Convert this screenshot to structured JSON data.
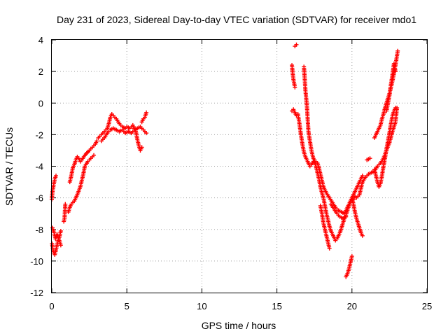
{
  "chart_data": {
    "type": "scatter",
    "title": "Day 231 of 2023, Sidereal Day-to-day VTEC variation (SDTVAR) for receiver mdo1",
    "xlabel": "GPS time / hours",
    "ylabel": "SDTVAR / TECUs",
    "xlim": [
      0,
      25
    ],
    "ylim": [
      -12,
      4
    ],
    "xticks": [
      0,
      5,
      10,
      15,
      20,
      25
    ],
    "yticks": [
      -12,
      -10,
      -8,
      -6,
      -4,
      -2,
      0,
      2,
      4
    ],
    "grid": true,
    "marker": "+",
    "color": "#ff0000",
    "series": [
      {
        "name": "SDTVAR",
        "tracks": [
          [
            [
              0.0,
              -6.1
            ],
            [
              0.05,
              -5.6
            ],
            [
              0.12,
              -5.2
            ],
            [
              0.2,
              -4.8
            ],
            [
              0.28,
              -4.6
            ]
          ],
          [
            [
              0.02,
              -8.9
            ],
            [
              0.1,
              -9.4
            ],
            [
              0.2,
              -9.6
            ],
            [
              0.3,
              -9.2
            ],
            [
              0.4,
              -8.8
            ],
            [
              0.5,
              -8.5
            ],
            [
              0.6,
              -8.1
            ]
          ],
          [
            [
              0.05,
              -7.9
            ],
            [
              0.15,
              -8.2
            ],
            [
              0.25,
              -8.6
            ],
            [
              0.35,
              -8.3
            ],
            [
              0.5,
              -8.7
            ],
            [
              0.6,
              -9.0
            ]
          ],
          [
            [
              0.8,
              -7.5
            ],
            [
              0.85,
              -7.3
            ],
            [
              0.9,
              -6.4
            ]
          ],
          [
            [
              1.1,
              -6.9
            ],
            [
              1.2,
              -6.6
            ],
            [
              1.3,
              -6.4
            ],
            [
              1.5,
              -6.2
            ],
            [
              1.7,
              -5.8
            ],
            [
              1.9,
              -5.3
            ],
            [
              2.0,
              -4.9
            ],
            [
              2.1,
              -4.5
            ],
            [
              2.2,
              -4.0
            ],
            [
              2.4,
              -3.7
            ],
            [
              2.6,
              -3.5
            ],
            [
              2.8,
              -3.3
            ]
          ],
          [
            [
              1.2,
              -5.0
            ],
            [
              1.3,
              -4.6
            ],
            [
              1.4,
              -4.1
            ],
            [
              1.5,
              -3.9
            ],
            [
              1.6,
              -3.6
            ],
            [
              1.7,
              -3.4
            ],
            [
              1.8,
              -3.5
            ],
            [
              1.9,
              -3.7
            ],
            [
              2.0,
              -3.6
            ],
            [
              2.2,
              -3.3
            ],
            [
              2.5,
              -3.0
            ],
            [
              2.7,
              -2.8
            ],
            [
              2.9,
              -2.6
            ],
            [
              3.0,
              -2.4
            ]
          ],
          [
            [
              3.1,
              -2.2
            ],
            [
              3.3,
              -2.0
            ],
            [
              3.5,
              -1.8
            ],
            [
              3.7,
              -1.6
            ],
            [
              3.8,
              -1.3
            ],
            [
              3.9,
              -0.9
            ],
            [
              4.0,
              -0.7
            ],
            [
              4.1,
              -0.8
            ],
            [
              4.3,
              -1.0
            ],
            [
              4.5,
              -1.3
            ],
            [
              4.7,
              -1.5
            ],
            [
              4.9,
              -1.6
            ]
          ],
          [
            [
              3.3,
              -2.4
            ],
            [
              3.5,
              -2.2
            ],
            [
              3.7,
              -1.9
            ],
            [
              3.9,
              -1.7
            ],
            [
              4.1,
              -1.6
            ],
            [
              4.3,
              -1.7
            ],
            [
              4.5,
              -1.8
            ],
            [
              4.7,
              -1.7
            ],
            [
              4.9,
              -1.9
            ],
            [
              5.1,
              -1.8
            ],
            [
              5.3,
              -1.9
            ],
            [
              5.5,
              -1.7
            ],
            [
              5.7,
              -1.6
            ],
            [
              5.9,
              -1.5
            ],
            [
              6.1,
              -1.7
            ],
            [
              6.3,
              -1.9
            ]
          ],
          [
            [
              5.0,
              -1.5
            ],
            [
              5.2,
              -1.6
            ],
            [
              5.4,
              -1.4
            ],
            [
              5.6,
              -1.8
            ],
            [
              5.7,
              -2.3
            ],
            [
              5.8,
              -2.7
            ],
            [
              5.9,
              -3.0
            ],
            [
              6.0,
              -2.8
            ]
          ],
          [
            [
              6.0,
              -1.2
            ],
            [
              6.1,
              -1.0
            ],
            [
              6.2,
              -0.9
            ],
            [
              6.3,
              -0.6
            ]
          ],
          [
            [
              16.0,
              2.4
            ],
            [
              16.05,
              1.9
            ],
            [
              16.1,
              1.5
            ],
            [
              16.2,
              1.0
            ]
          ],
          [
            [
              16.2,
              3.6
            ],
            [
              16.3,
              3.7
            ]
          ],
          [
            [
              16.0,
              -0.5
            ],
            [
              16.1,
              -0.4
            ],
            [
              16.2,
              -0.6
            ],
            [
              16.3,
              -0.8
            ]
          ],
          [
            [
              16.4,
              -0.7
            ],
            [
              16.5,
              -1.3
            ],
            [
              16.6,
              -2.0
            ],
            [
              16.7,
              -2.6
            ],
            [
              16.8,
              -3.1
            ],
            [
              16.9,
              -3.4
            ],
            [
              17.0,
              -3.6
            ],
            [
              17.1,
              -3.8
            ],
            [
              17.2,
              -4.0
            ],
            [
              17.3,
              -3.9
            ],
            [
              17.5,
              -3.6
            ],
            [
              17.7,
              -3.8
            ],
            [
              17.8,
              -4.1
            ],
            [
              17.9,
              -4.5
            ],
            [
              18.0,
              -4.9
            ],
            [
              18.1,
              -5.3
            ],
            [
              18.3,
              -5.7
            ],
            [
              18.5,
              -6.0
            ],
            [
              18.7,
              -6.3
            ],
            [
              18.9,
              -6.6
            ],
            [
              19.1,
              -6.8
            ],
            [
              19.3,
              -6.9
            ],
            [
              19.5,
              -7.0
            ],
            [
              19.7,
              -6.6
            ],
            [
              19.9,
              -6.2
            ],
            [
              20.1,
              -5.8
            ],
            [
              20.3,
              -5.4
            ],
            [
              20.5,
              -5.0
            ],
            [
              20.7,
              -4.6
            ]
          ],
          [
            [
              16.8,
              2.3
            ],
            [
              16.85,
              1.6
            ],
            [
              16.9,
              0.8
            ],
            [
              17.0,
              -0.2
            ],
            [
              17.05,
              -1.0
            ],
            [
              17.1,
              -1.8
            ],
            [
              17.2,
              -2.4
            ],
            [
              17.3,
              -3.0
            ],
            [
              17.4,
              -3.4
            ],
            [
              17.5,
              -3.7
            ],
            [
              17.6,
              -4.0
            ],
            [
              17.7,
              -4.4
            ],
            [
              17.8,
              -4.8
            ],
            [
              17.9,
              -5.3
            ],
            [
              18.0,
              -5.7
            ],
            [
              18.1,
              -6.0
            ],
            [
              18.2,
              -6.5
            ],
            [
              18.3,
              -7.0
            ],
            [
              18.4,
              -7.4
            ],
            [
              18.5,
              -7.8
            ],
            [
              18.6,
              -8.1
            ],
            [
              18.7,
              -8.3
            ],
            [
              18.8,
              -8.5
            ],
            [
              18.9,
              -8.7
            ],
            [
              19.0,
              -8.6
            ],
            [
              19.1,
              -8.4
            ],
            [
              19.2,
              -8.2
            ],
            [
              19.3,
              -7.9
            ],
            [
              19.4,
              -7.6
            ],
            [
              19.5,
              -7.3
            ],
            [
              19.6,
              -7.1
            ],
            [
              19.7,
              -6.8
            ],
            [
              19.8,
              -6.5
            ],
            [
              19.9,
              -6.3
            ],
            [
              20.0,
              -6.2
            ],
            [
              20.1,
              -6.1
            ],
            [
              20.2,
              -5.9
            ]
          ],
          [
            [
              17.9,
              -6.5
            ],
            [
              18.0,
              -7.0
            ],
            [
              18.1,
              -7.6
            ],
            [
              18.2,
              -8.0
            ],
            [
              18.3,
              -8.4
            ],
            [
              18.4,
              -8.8
            ],
            [
              18.5,
              -9.2
            ]
          ],
          [
            [
              18.6,
              -6.4
            ],
            [
              18.8,
              -6.7
            ],
            [
              19.0,
              -7.0
            ],
            [
              19.2,
              -7.2
            ],
            [
              19.4,
              -7.3
            ],
            [
              19.6,
              -7.2
            ]
          ],
          [
            [
              19.6,
              -11.0
            ],
            [
              19.7,
              -10.8
            ],
            [
              19.8,
              -10.5
            ],
            [
              19.9,
              -10.1
            ],
            [
              20.0,
              -9.7
            ]
          ],
          [
            [
              20.0,
              -6.0
            ],
            [
              20.1,
              -6.4
            ],
            [
              20.2,
              -6.9
            ],
            [
              20.3,
              -7.3
            ],
            [
              20.4,
              -7.6
            ],
            [
              20.5,
              -7.9
            ],
            [
              20.6,
              -8.2
            ],
            [
              20.7,
              -8.4
            ]
          ],
          [
            [
              20.3,
              -6.0
            ],
            [
              20.5,
              -5.8
            ],
            [
              20.7,
              -5.0
            ],
            [
              20.9,
              -4.7
            ],
            [
              21.1,
              -4.5
            ],
            [
              21.3,
              -4.4
            ],
            [
              21.5,
              -4.3
            ],
            [
              21.7,
              -4.0
            ],
            [
              21.9,
              -3.8
            ],
            [
              22.1,
              -3.5
            ],
            [
              22.3,
              -3.0
            ],
            [
              22.5,
              -2.5
            ],
            [
              22.7,
              -1.8
            ],
            [
              22.9,
              -1.2
            ],
            [
              23.0,
              -0.3
            ]
          ],
          [
            [
              21.0,
              -3.6
            ],
            [
              21.2,
              -3.5
            ]
          ],
          [
            [
              21.5,
              -4.2
            ],
            [
              21.6,
              -4.6
            ],
            [
              21.7,
              -5.0
            ],
            [
              21.8,
              -5.3
            ],
            [
              21.9,
              -5.1
            ],
            [
              22.0,
              -4.6
            ],
            [
              22.1,
              -4.0
            ],
            [
              22.2,
              -3.5
            ],
            [
              22.3,
              -2.9
            ],
            [
              22.4,
              -2.4
            ],
            [
              22.5,
              -1.9
            ],
            [
              22.6,
              -1.3
            ],
            [
              22.7,
              -0.8
            ],
            [
              22.8,
              -0.5
            ],
            [
              22.9,
              -0.3
            ]
          ],
          [
            [
              21.5,
              -2.2
            ],
            [
              21.7,
              -1.8
            ],
            [
              21.9,
              -1.4
            ],
            [
              22.0,
              -1.0
            ],
            [
              22.1,
              -0.7
            ],
            [
              22.2,
              -0.3
            ],
            [
              22.3,
              0.0
            ],
            [
              22.4,
              0.3
            ],
            [
              22.5,
              0.6
            ],
            [
              22.6,
              1.0
            ],
            [
              22.7,
              1.4
            ],
            [
              22.8,
              1.9
            ],
            [
              22.9,
              2.4
            ],
            [
              23.0,
              3.0
            ],
            [
              23.05,
              3.3
            ]
          ],
          [
            [
              22.3,
              -0.5
            ],
            [
              22.4,
              0.0
            ],
            [
              22.5,
              0.5
            ],
            [
              22.6,
              1.2
            ],
            [
              22.7,
              1.8
            ],
            [
              22.8,
              2.5
            ],
            [
              22.9,
              2.0
            ]
          ]
        ]
      }
    ]
  }
}
